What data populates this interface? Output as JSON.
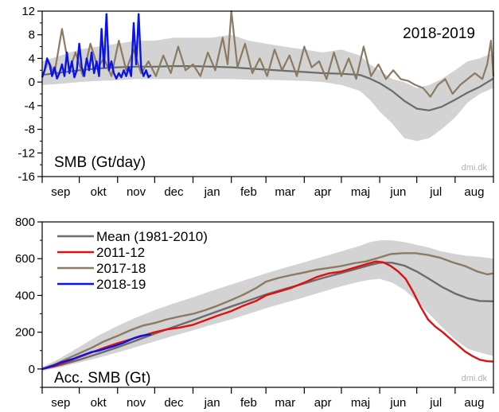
{
  "chart_data": [
    {
      "type": "line",
      "season_label": "2018-2019",
      "panel_label": "SMB (Gt/day)",
      "credit": "dmi.dk",
      "ylim": [
        -16,
        12
      ],
      "yticks": [
        12,
        8,
        4,
        0,
        -4,
        -8,
        -12,
        -16
      ],
      "xlim": [
        0,
        365
      ],
      "months": [
        "sep",
        "okt",
        "nov",
        "dec",
        "jan",
        "feb",
        "mar",
        "apr",
        "maj",
        "jun",
        "jul",
        "aug"
      ],
      "month_starts": [
        0,
        30,
        61,
        91,
        122,
        153,
        181,
        212,
        242,
        273,
        303,
        334,
        365
      ],
      "band": {
        "x": [
          0,
          15,
          30,
          45,
          61,
          76,
          91,
          106,
          122,
          137,
          153,
          167,
          181,
          196,
          212,
          227,
          242,
          257,
          265,
          273,
          283,
          293,
          303,
          313,
          323,
          334,
          344,
          354,
          365
        ],
        "upper": [
          3.5,
          4.5,
          5.5,
          6.0,
          6.5,
          7.0,
          7.0,
          7.5,
          7.5,
          7.5,
          8.0,
          7.0,
          6.5,
          6.0,
          5.5,
          5.0,
          5.5,
          4.5,
          3.0,
          2.0,
          0.5,
          0.0,
          -1.0,
          -0.5,
          0.5,
          2.0,
          3.5,
          4.0,
          5.0
        ],
        "lower": [
          -0.5,
          -0.3,
          0.0,
          0.2,
          0.3,
          0.5,
          0.5,
          0.5,
          0.5,
          0.5,
          0.5,
          0.4,
          0.4,
          0.3,
          0.2,
          0.0,
          -0.5,
          -1.5,
          -3.0,
          -5.0,
          -7.0,
          -9.5,
          -10.0,
          -9.5,
          -8.0,
          -6.0,
          -3.5,
          -2.0,
          -1.0
        ]
      },
      "series": [
        {
          "name": "",
          "color": "#6b6b6b",
          "x": [
            0,
            15,
            30,
            45,
            61,
            76,
            91,
            106,
            122,
            137,
            153,
            167,
            181,
            196,
            212,
            227,
            242,
            257,
            265,
            273,
            283,
            293,
            303,
            313,
            323,
            334,
            344,
            354,
            365
          ],
          "y": [
            1.2,
            1.6,
            2.0,
            2.3,
            2.5,
            2.6,
            2.6,
            2.7,
            2.7,
            2.6,
            2.5,
            2.3,
            2.1,
            1.9,
            1.7,
            1.5,
            1.4,
            1.2,
            0.6,
            -0.2,
            -1.5,
            -3.2,
            -4.5,
            -4.8,
            -4.2,
            -3.0,
            -1.8,
            -0.8,
            0.6
          ]
        },
        {
          "name": "",
          "color": "#8b7a62",
          "x": [
            0,
            5,
            10,
            16,
            22,
            27,
            33,
            39,
            45,
            50,
            56,
            62,
            68,
            74,
            80,
            86,
            92,
            98,
            104,
            110,
            116,
            122,
            128,
            134,
            140,
            146,
            150,
            153,
            158,
            164,
            170,
            176,
            182,
            188,
            194,
            200,
            206,
            212,
            218,
            224,
            230,
            236,
            242,
            248,
            254,
            260,
            266,
            272,
            278,
            284,
            290,
            296,
            302,
            308,
            314,
            320,
            326,
            332,
            338,
            344,
            350,
            356,
            360,
            363,
            365
          ],
          "y": [
            1.0,
            3.5,
            1.5,
            9.0,
            2.0,
            5.0,
            1.0,
            6.5,
            2.5,
            4.0,
            1.0,
            7.0,
            2.0,
            5.5,
            1.5,
            3.5,
            1.0,
            4.5,
            1.5,
            6.0,
            2.0,
            3.0,
            1.0,
            5.0,
            2.0,
            7.5,
            3.0,
            12.0,
            2.5,
            6.5,
            1.5,
            4.0,
            1.0,
            5.5,
            2.0,
            4.5,
            1.0,
            6.0,
            2.5,
            3.5,
            0.5,
            5.0,
            1.0,
            4.0,
            0.5,
            6.0,
            1.0,
            3.0,
            0.5,
            2.0,
            0.5,
            0.2,
            -0.5,
            -1.0,
            -2.5,
            -0.5,
            0.5,
            -2.0,
            -0.5,
            0.5,
            1.5,
            0.5,
            3.0,
            7.0,
            1.0
          ]
        },
        {
          "name": "",
          "color": "#0a14e6",
          "x": [
            0,
            2,
            4,
            6,
            8,
            10,
            12,
            14,
            16,
            18,
            20,
            22,
            24,
            26,
            28,
            30,
            32,
            34,
            36,
            38,
            40,
            42,
            44,
            46,
            48,
            50,
            52,
            54,
            56,
            58,
            60,
            62,
            64,
            66,
            68,
            70,
            72,
            74,
            76,
            78,
            80,
            82,
            84,
            86,
            88
          ],
          "y": [
            0.8,
            2.0,
            4.0,
            3.0,
            1.0,
            2.5,
            0.6,
            1.5,
            3.0,
            1.0,
            5.0,
            1.5,
            3.5,
            0.8,
            2.0,
            6.5,
            2.5,
            1.0,
            4.0,
            2.0,
            5.0,
            1.5,
            3.5,
            1.0,
            9.0,
            2.5,
            11.5,
            2.0,
            3.5,
            1.5,
            0.6,
            1.5,
            0.8,
            2.0,
            1.0,
            2.5,
            1.0,
            10.0,
            3.0,
            11.5,
            2.5,
            1.0,
            2.0,
            0.8,
            1.2
          ]
        }
      ]
    },
    {
      "type": "line",
      "panel_label": "Acc. SMB (Gt)",
      "credit": "dmi.dk",
      "ylim": [
        -100,
        800
      ],
      "yticks": [
        800,
        600,
        400,
        200,
        0
      ],
      "xlim": [
        0,
        365
      ],
      "months": [
        "sep",
        "okt",
        "nov",
        "dec",
        "jan",
        "feb",
        "mar",
        "apr",
        "maj",
        "jun",
        "jul",
        "aug"
      ],
      "month_starts": [
        0,
        30,
        61,
        91,
        122,
        153,
        181,
        212,
        242,
        273,
        303,
        334,
        365
      ],
      "band": {
        "x": [
          0,
          15,
          30,
          45,
          61,
          76,
          91,
          106,
          122,
          137,
          153,
          167,
          181,
          196,
          212,
          227,
          242,
          257,
          265,
          273,
          283,
          293,
          303,
          313,
          323,
          334,
          344,
          354,
          365
        ],
        "upper": [
          10,
          60,
          120,
          180,
          235,
          280,
          320,
          355,
          390,
          425,
          460,
          490,
          520,
          550,
          580,
          610,
          640,
          670,
          690,
          700,
          700,
          690,
          675,
          660,
          640,
          625,
          615,
          610,
          600
        ],
        "lower": [
          -10,
          10,
          35,
          60,
          90,
          120,
          150,
          180,
          210,
          240,
          270,
          300,
          330,
          360,
          390,
          420,
          450,
          475,
          485,
          490,
          470,
          430,
          370,
          300,
          230,
          160,
          110,
          90,
          70
        ]
      },
      "legend": {
        "position": "top-left",
        "entries": [
          {
            "label": "Mean (1981-2010)",
            "color": "#6b6b6b"
          },
          {
            "label": "2011-12",
            "color": "#e01010"
          },
          {
            "label": "2017-18",
            "color": "#8b7a62"
          },
          {
            "label": "2018-19",
            "color": "#0a14e6"
          }
        ]
      },
      "series": [
        {
          "name": "Mean (1981-2010)",
          "color": "#6b6b6b",
          "x": [
            0,
            15,
            30,
            45,
            61,
            76,
            91,
            106,
            122,
            137,
            153,
            167,
            181,
            196,
            212,
            227,
            242,
            257,
            265,
            273,
            283,
            293,
            303,
            313,
            323,
            334,
            344,
            354,
            365
          ],
          "y": [
            0,
            22,
            50,
            82,
            118,
            155,
            192,
            228,
            265,
            302,
            340,
            372,
            405,
            435,
            465,
            495,
            522,
            550,
            565,
            578,
            578,
            562,
            530,
            490,
            448,
            410,
            385,
            370,
            368
          ]
        },
        {
          "name": "2011-12",
          "color": "#e01010",
          "x": [
            0,
            10,
            20,
            30,
            40,
            50,
            61,
            71,
            81,
            91,
            101,
            111,
            122,
            132,
            142,
            153,
            163,
            173,
            181,
            191,
            201,
            212,
            222,
            232,
            242,
            252,
            262,
            270,
            276,
            282,
            288,
            294,
            300,
            306,
            312,
            318,
            324,
            330,
            336,
            342,
            348,
            354,
            360,
            365
          ],
          "y": [
            0,
            15,
            40,
            65,
            90,
            115,
            140,
            160,
            180,
            200,
            215,
            225,
            240,
            265,
            290,
            315,
            345,
            370,
            400,
            420,
            440,
            470,
            500,
            520,
            530,
            550,
            570,
            585,
            580,
            560,
            530,
            490,
            420,
            340,
            270,
            230,
            200,
            165,
            130,
            95,
            70,
            50,
            42,
            40
          ]
        },
        {
          "name": "2017-18",
          "color": "#8b7a62",
          "x": [
            0,
            10,
            20,
            30,
            40,
            50,
            61,
            71,
            81,
            91,
            101,
            111,
            122,
            132,
            142,
            153,
            163,
            173,
            181,
            191,
            201,
            212,
            222,
            232,
            242,
            252,
            262,
            272,
            282,
            292,
            302,
            312,
            322,
            332,
            342,
            352,
            360,
            365
          ],
          "y": [
            0,
            25,
            55,
            85,
            115,
            150,
            180,
            210,
            235,
            250,
            270,
            285,
            300,
            320,
            345,
            375,
            405,
            440,
            475,
            495,
            510,
            525,
            540,
            550,
            560,
            575,
            585,
            605,
            625,
            630,
            630,
            620,
            605,
            580,
            560,
            530,
            515,
            520
          ]
        },
        {
          "name": "2018-19",
          "color": "#0a14e6",
          "x": [
            0,
            5,
            10,
            15,
            20,
            25,
            30,
            35,
            40,
            45,
            50,
            55,
            60,
            65,
            70,
            75,
            80,
            85,
            88
          ],
          "y": [
            0,
            10,
            20,
            35,
            45,
            55,
            68,
            80,
            92,
            98,
            108,
            118,
            128,
            140,
            155,
            170,
            180,
            186,
            188
          ]
        }
      ]
    }
  ]
}
